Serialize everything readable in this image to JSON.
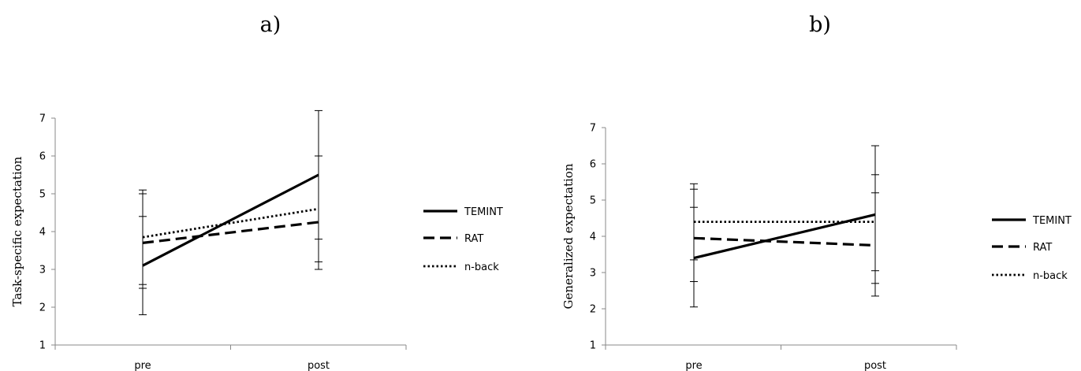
{
  "chart_data": [
    {
      "panel_label": "a)",
      "type": "line",
      "categories": [
        "pre",
        "post"
      ],
      "ylabel": "Task-specific  expectation",
      "xlabel": "",
      "ylim": [
        1,
        7
      ],
      "yticks": [
        1,
        2,
        3,
        4,
        5,
        6,
        7
      ],
      "legend": "right",
      "series": [
        {
          "name": "TEMINT",
          "style": "solid",
          "values": [
            3.1,
            5.5
          ],
          "err_low": [
            1.8,
            3.8
          ],
          "err_high": [
            4.4,
            7.2
          ]
        },
        {
          "name": "RAT",
          "style": "dashed",
          "values": [
            3.7,
            4.25
          ],
          "err_low": [
            2.5,
            3.0
          ],
          "err_high": [
            5.0,
            6.0
          ]
        },
        {
          "name": "n-back",
          "style": "dotted",
          "values": [
            3.85,
            4.6
          ],
          "err_low": [
            2.6,
            3.2
          ],
          "err_high": [
            5.1,
            6.0
          ]
        }
      ]
    },
    {
      "panel_label": "b)",
      "type": "line",
      "categories": [
        "pre",
        "post"
      ],
      "ylabel": "Generalized  expectation",
      "xlabel": "",
      "ylim": [
        1,
        7
      ],
      "yticks": [
        1,
        2,
        3,
        4,
        5,
        6,
        7
      ],
      "legend": "right",
      "series": [
        {
          "name": "TEMINT",
          "style": "solid",
          "values": [
            3.4,
            4.6
          ],
          "err_low": [
            2.05,
            2.7
          ],
          "err_high": [
            4.8,
            6.5
          ]
        },
        {
          "name": "RAT",
          "style": "dashed",
          "values": [
            3.95,
            3.75
          ],
          "err_low": [
            2.75,
            2.35
          ],
          "err_high": [
            5.45,
            5.2
          ]
        },
        {
          "name": "n-back",
          "style": "dotted",
          "values": [
            4.4,
            4.4
          ],
          "err_low": [
            3.35,
            3.05
          ],
          "err_high": [
            5.3,
            5.7
          ]
        }
      ]
    }
  ]
}
